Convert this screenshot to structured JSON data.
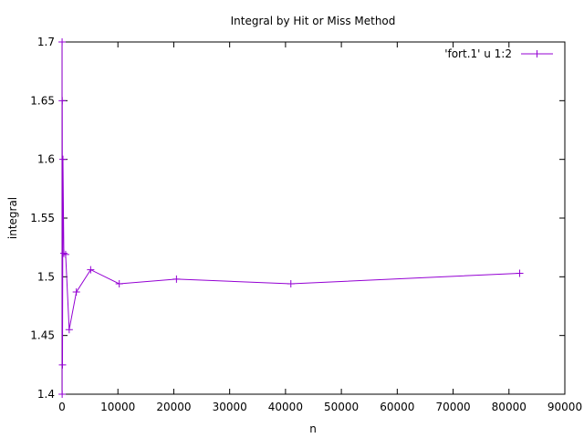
{
  "chart_data": {
    "type": "line",
    "title": "Integral by Hit or Miss Method",
    "xlabel": "n",
    "ylabel": "integral",
    "xlim": [
      0,
      90000
    ],
    "ylim": [
      1.4,
      1.7
    ],
    "xticks": [
      0,
      10000,
      20000,
      30000,
      40000,
      50000,
      60000,
      70000,
      80000,
      90000
    ],
    "xtick_labels": [
      "0",
      "10000",
      "20000",
      "30000",
      "40000",
      "50000",
      "60000",
      "70000",
      "80000",
      "90000"
    ],
    "yticks": [
      1.4,
      1.45,
      1.5,
      1.55,
      1.6,
      1.65,
      1.7
    ],
    "ytick_labels": [
      "1.4",
      "1.45",
      "1.5",
      "1.55",
      "1.6",
      "1.65",
      "1.7"
    ],
    "grid": false,
    "legend_position": "top-right",
    "series": [
      {
        "name": "'fort.1' u 1:2",
        "color": "#9400d3",
        "marker": "plus",
        "x": [
          10,
          20,
          40,
          80,
          160,
          320,
          640,
          1280,
          2560,
          5120,
          10240,
          20480,
          40960,
          81920
        ],
        "y": [
          1.7,
          1.4,
          1.65,
          1.425,
          1.6,
          1.52,
          1.519,
          1.455,
          1.487,
          1.506,
          1.494,
          1.498,
          1.494,
          1.503
        ]
      }
    ]
  }
}
